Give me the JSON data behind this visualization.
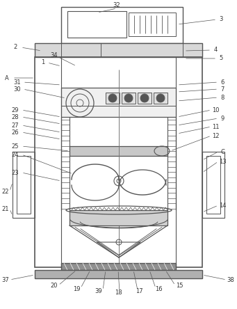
{
  "bg_color": "#ffffff",
  "lc": "#555555",
  "lc2": "#888888",
  "label_color": "#333333",
  "figsize": [
    3.41,
    4.44
  ],
  "dpi": 100,
  "label_fs": 6.0
}
